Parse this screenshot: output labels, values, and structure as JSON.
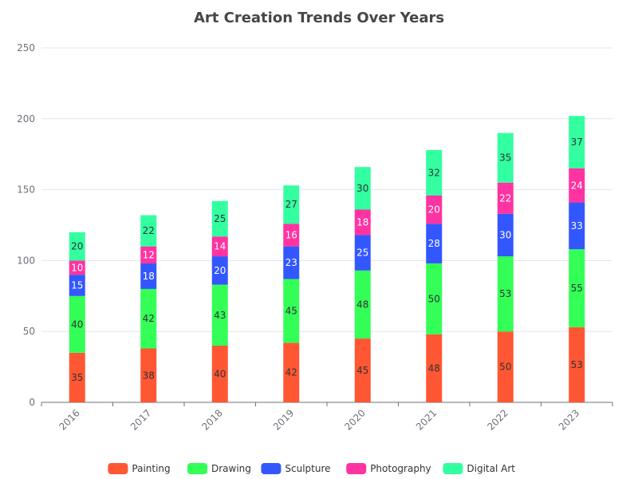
{
  "chart_data": {
    "type": "bar",
    "stacked": true,
    "title": "Art Creation Trends Over Years",
    "xlabel": "",
    "ylabel": "",
    "categories": [
      "2016",
      "2017",
      "2018",
      "2019",
      "2020",
      "2021",
      "2022",
      "2023"
    ],
    "ylim": [
      0,
      250
    ],
    "yticks": [
      0,
      50,
      100,
      150,
      200,
      250
    ],
    "grid": true,
    "legend_position": "bottom-center",
    "series": [
      {
        "name": "Painting",
        "color": "#ff5733",
        "label_color": "#333333",
        "values": [
          35,
          38,
          40,
          42,
          45,
          48,
          50,
          53
        ]
      },
      {
        "name": "Drawing",
        "color": "#33ff57",
        "label_color": "#333333",
        "values": [
          40,
          42,
          43,
          45,
          48,
          50,
          53,
          55
        ]
      },
      {
        "name": "Sculpture",
        "color": "#3357ff",
        "label_color": "#ffffff",
        "values": [
          15,
          18,
          20,
          23,
          25,
          28,
          30,
          33
        ]
      },
      {
        "name": "Photography",
        "color": "#ff33a1",
        "label_color": "#ffffff",
        "values": [
          10,
          12,
          14,
          16,
          18,
          20,
          22,
          24
        ]
      },
      {
        "name": "Digital Art",
        "color": "#33ffa1",
        "label_color": "#333333",
        "values": [
          20,
          22,
          25,
          27,
          30,
          32,
          35,
          37
        ]
      }
    ]
  }
}
